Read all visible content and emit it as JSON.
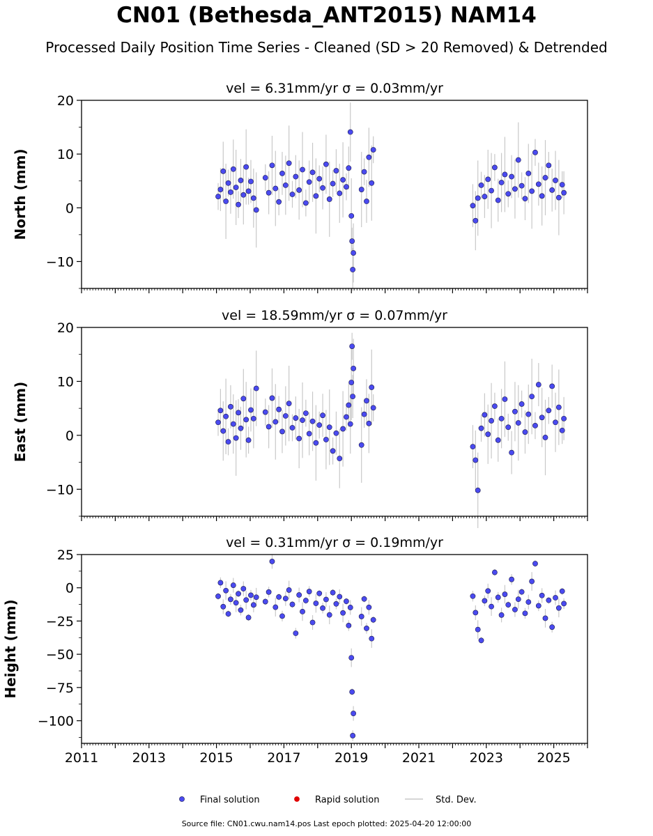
{
  "figure": {
    "title": "CN01 (Bethesda_ANT2015) NAM14",
    "subtitle": "Processed Daily Position Time Series - Cleaned (SD > 20 Removed) & Detrended",
    "footer": "Source file: CN01.cwu.nam14.pos  Last epoch plotted: 2025-04-20 12:00:00"
  },
  "colors": {
    "final_marker": "#4a4af0",
    "final_edge": "#1a1a4a",
    "rapid_marker": "#e00000",
    "std_dev": "#c8c8c8"
  },
  "legend": {
    "placement": "bottom-center",
    "items": [
      {
        "label": "Final solution",
        "kind": "marker",
        "color_key": "final_marker"
      },
      {
        "label": "Rapid solution",
        "kind": "marker",
        "color_key": "rapid_marker"
      },
      {
        "label": "Std. Dev.",
        "kind": "line",
        "color_key": "std_dev"
      }
    ]
  },
  "chart_data": [
    {
      "type": "scatter",
      "title": "vel = 6.31mm/yr   σ = 0.03mm/yr",
      "ylabel": "North (mm)",
      "xlim": [
        2011,
        2026
      ],
      "ylim": [
        -15,
        20
      ],
      "yticks": [
        -10,
        0,
        10,
        20
      ],
      "xticks": [
        2011,
        2013,
        2015,
        2017,
        2019,
        2021,
        2023,
        2025
      ],
      "show_xtick_labels": false,
      "series": [
        {
          "points": [
            [
              2015.05,
              2.1
            ],
            [
              2015.12,
              3.4
            ],
            [
              2015.2,
              6.8
            ],
            [
              2015.28,
              1.2
            ],
            [
              2015.35,
              4.6
            ],
            [
              2015.42,
              2.9
            ],
            [
              2015.5,
              7.2
            ],
            [
              2015.58,
              3.8
            ],
            [
              2015.65,
              0.6
            ],
            [
              2015.72,
              5.1
            ],
            [
              2015.8,
              2.4
            ],
            [
              2015.88,
              7.6
            ],
            [
              2015.95,
              3.1
            ],
            [
              2016.02,
              4.9
            ],
            [
              2016.1,
              1.8
            ],
            [
              2016.18,
              -0.4
            ],
            [
              2016.45,
              5.6
            ],
            [
              2016.55,
              2.8
            ],
            [
              2016.65,
              7.9
            ],
            [
              2016.75,
              3.6
            ],
            [
              2016.85,
              1.1
            ],
            [
              2016.95,
              6.4
            ],
            [
              2017.05,
              4.2
            ],
            [
              2017.15,
              8.3
            ],
            [
              2017.25,
              2.5
            ],
            [
              2017.35,
              5.8
            ],
            [
              2017.45,
              3.3
            ],
            [
              2017.55,
              7.1
            ],
            [
              2017.65,
              0.9
            ],
            [
              2017.75,
              4.8
            ],
            [
              2017.85,
              6.6
            ],
            [
              2017.95,
              2.2
            ],
            [
              2018.05,
              5.4
            ],
            [
              2018.15,
              3.7
            ],
            [
              2018.25,
              8.1
            ],
            [
              2018.35,
              1.6
            ],
            [
              2018.45,
              4.5
            ],
            [
              2018.55,
              6.9
            ],
            [
              2018.65,
              2.7
            ],
            [
              2018.75,
              5.2
            ],
            [
              2018.85,
              3.9
            ],
            [
              2018.92,
              7.4
            ],
            [
              2018.97,
              14.1
            ],
            [
              2019.0,
              -1.5
            ],
            [
              2019.02,
              -6.2
            ],
            [
              2019.04,
              -11.5
            ],
            [
              2019.06,
              -8.4
            ],
            [
              2019.3,
              3.4
            ],
            [
              2019.38,
              6.7
            ],
            [
              2019.45,
              1.2
            ],
            [
              2019.52,
              9.4
            ],
            [
              2019.6,
              4.6
            ],
            [
              2019.65,
              10.8
            ],
            [
              2022.6,
              0.4
            ],
            [
              2022.68,
              -2.4
            ],
            [
              2022.75,
              1.8
            ],
            [
              2022.85,
              4.2
            ],
            [
              2022.95,
              2.1
            ],
            [
              2023.05,
              5.3
            ],
            [
              2023.15,
              3.2
            ],
            [
              2023.25,
              7.5
            ],
            [
              2023.35,
              1.4
            ],
            [
              2023.45,
              4.7
            ],
            [
              2023.55,
              6.2
            ],
            [
              2023.65,
              2.6
            ],
            [
              2023.75,
              5.8
            ],
            [
              2023.85,
              3.5
            ],
            [
              2023.95,
              8.9
            ],
            [
              2024.05,
              4.1
            ],
            [
              2024.15,
              1.7
            ],
            [
              2024.25,
              6.4
            ],
            [
              2024.35,
              3.1
            ],
            [
              2024.45,
              10.3
            ],
            [
              2024.55,
              4.4
            ],
            [
              2024.65,
              2.2
            ],
            [
              2024.75,
              5.6
            ],
            [
              2024.85,
              7.9
            ],
            [
              2024.95,
              3.3
            ],
            [
              2025.05,
              5.1
            ],
            [
              2025.15,
              1.9
            ],
            [
              2025.25,
              4.3
            ],
            [
              2025.3,
              2.8
            ]
          ]
        }
      ]
    },
    {
      "type": "scatter",
      "title": "vel = 18.59mm/yr   σ = 0.07mm/yr",
      "ylabel": "East (mm)",
      "xlim": [
        2011,
        2026
      ],
      "ylim": [
        -15,
        20
      ],
      "yticks": [
        -10,
        0,
        10,
        20
      ],
      "xticks": [
        2011,
        2013,
        2015,
        2017,
        2019,
        2021,
        2023,
        2025
      ],
      "show_xtick_labels": false,
      "series": [
        {
          "points": [
            [
              2015.05,
              2.4
            ],
            [
              2015.12,
              4.6
            ],
            [
              2015.2,
              0.8
            ],
            [
              2015.28,
              3.5
            ],
            [
              2015.35,
              -1.2
            ],
            [
              2015.42,
              5.3
            ],
            [
              2015.5,
              2.1
            ],
            [
              2015.58,
              -0.5
            ],
            [
              2015.65,
              4.2
            ],
            [
              2015.72,
              1.3
            ],
            [
              2015.8,
              6.8
            ],
            [
              2015.88,
              2.9
            ],
            [
              2015.95,
              -0.9
            ],
            [
              2016.02,
              4.7
            ],
            [
              2016.1,
              3.1
            ],
            [
              2016.18,
              8.7
            ],
            [
              2016.45,
              4.3
            ],
            [
              2016.55,
              1.6
            ],
            [
              2016.65,
              6.9
            ],
            [
              2016.75,
              2.5
            ],
            [
              2016.85,
              4.8
            ],
            [
              2016.95,
              0.7
            ],
            [
              2017.05,
              3.6
            ],
            [
              2017.15,
              5.9
            ],
            [
              2017.25,
              1.4
            ],
            [
              2017.35,
              3.2
            ],
            [
              2017.45,
              -0.6
            ],
            [
              2017.55,
              2.8
            ],
            [
              2017.65,
              4.1
            ],
            [
              2017.75,
              0.3
            ],
            [
              2017.85,
              2.6
            ],
            [
              2017.95,
              -1.4
            ],
            [
              2018.05,
              1.9
            ],
            [
              2018.15,
              3.7
            ],
            [
              2018.25,
              -0.8
            ],
            [
              2018.35,
              1.5
            ],
            [
              2018.45,
              -2.9
            ],
            [
              2018.55,
              0.4
            ],
            [
              2018.65,
              -4.3
            ],
            [
              2018.75,
              1.2
            ],
            [
              2018.85,
              3.4
            ],
            [
              2018.92,
              5.6
            ],
            [
              2018.97,
              2.1
            ],
            [
              2019.0,
              9.8
            ],
            [
              2019.02,
              16.5
            ],
            [
              2019.04,
              7.2
            ],
            [
              2019.06,
              12.4
            ],
            [
              2019.3,
              -1.8
            ],
            [
              2019.38,
              3.9
            ],
            [
              2019.45,
              6.4
            ],
            [
              2019.52,
              2.2
            ],
            [
              2019.6,
              8.9
            ],
            [
              2019.65,
              5.1
            ],
            [
              2022.6,
              -2.1
            ],
            [
              2022.68,
              -4.6
            ],
            [
              2022.75,
              -10.2
            ],
            [
              2022.85,
              1.3
            ],
            [
              2022.95,
              3.8
            ],
            [
              2023.05,
              0.2
            ],
            [
              2023.15,
              2.7
            ],
            [
              2023.25,
              5.4
            ],
            [
              2023.35,
              -0.9
            ],
            [
              2023.45,
              3.1
            ],
            [
              2023.55,
              6.7
            ],
            [
              2023.65,
              1.5
            ],
            [
              2023.75,
              -3.2
            ],
            [
              2023.85,
              4.4
            ],
            [
              2023.95,
              2.3
            ],
            [
              2024.05,
              5.8
            ],
            [
              2024.15,
              0.6
            ],
            [
              2024.25,
              3.9
            ],
            [
              2024.35,
              7.2
            ],
            [
              2024.45,
              1.8
            ],
            [
              2024.55,
              9.4
            ],
            [
              2024.65,
              3.3
            ],
            [
              2024.75,
              -0.4
            ],
            [
              2024.85,
              4.6
            ],
            [
              2024.95,
              9.1
            ],
            [
              2025.05,
              2.4
            ],
            [
              2025.15,
              5.2
            ],
            [
              2025.25,
              0.9
            ],
            [
              2025.3,
              3.1
            ]
          ]
        }
      ]
    },
    {
      "type": "scatter",
      "title": "vel = 0.31mm/yr   σ = 0.19mm/yr",
      "ylabel": "Height (mm)",
      "xlim": [
        2011,
        2026
      ],
      "ylim": [
        -117,
        25
      ],
      "yticks": [
        -100,
        -75,
        -50,
        -25,
        0,
        25
      ],
      "xticks": [
        2011,
        2013,
        2015,
        2017,
        2019,
        2021,
        2023,
        2025
      ],
      "show_xtick_labels": true,
      "series": [
        {
          "points": [
            [
              2015.05,
              -6.4
            ],
            [
              2015.12,
              3.8
            ],
            [
              2015.2,
              -14.2
            ],
            [
              2015.28,
              -2.1
            ],
            [
              2015.35,
              -19.6
            ],
            [
              2015.42,
              -8.7
            ],
            [
              2015.5,
              1.9
            ],
            [
              2015.58,
              -11.3
            ],
            [
              2015.65,
              -4.5
            ],
            [
              2015.72,
              -16.8
            ],
            [
              2015.8,
              -0.7
            ],
            [
              2015.88,
              -9.2
            ],
            [
              2015.95,
              -22.4
            ],
            [
              2016.02,
              -5.6
            ],
            [
              2016.1,
              -12.9
            ],
            [
              2016.18,
              -7.1
            ],
            [
              2016.45,
              -10.4
            ],
            [
              2016.55,
              -3.2
            ],
            [
              2016.65,
              19.8
            ],
            [
              2016.75,
              -14.6
            ],
            [
              2016.85,
              -6.9
            ],
            [
              2016.95,
              -21.3
            ],
            [
              2017.05,
              -8.1
            ],
            [
              2017.15,
              -1.7
            ],
            [
              2017.25,
              -12.5
            ],
            [
              2017.35,
              -34.2
            ],
            [
              2017.45,
              -5.4
            ],
            [
              2017.55,
              -17.9
            ],
            [
              2017.65,
              -9.6
            ],
            [
              2017.75,
              -2.8
            ],
            [
              2017.85,
              -26.1
            ],
            [
              2017.95,
              -11.7
            ],
            [
              2018.05,
              -4.2
            ],
            [
              2018.15,
              -15.3
            ],
            [
              2018.25,
              -8.8
            ],
            [
              2018.35,
              -20.4
            ],
            [
              2018.45,
              -3.6
            ],
            [
              2018.55,
              -12.1
            ],
            [
              2018.65,
              -6.7
            ],
            [
              2018.75,
              -18.9
            ],
            [
              2018.85,
              -10.2
            ],
            [
              2018.92,
              -28.4
            ],
            [
              2018.97,
              -14.8
            ],
            [
              2019.0,
              -52.6
            ],
            [
              2019.02,
              -78.3
            ],
            [
              2019.04,
              -111.2
            ],
            [
              2019.06,
              -94.5
            ],
            [
              2019.3,
              -21.6
            ],
            [
              2019.38,
              -8.4
            ],
            [
              2019.45,
              -30.5
            ],
            [
              2019.52,
              -14.7
            ],
            [
              2019.6,
              -38.2
            ],
            [
              2019.65,
              -24.1
            ],
            [
              2022.6,
              -6.3
            ],
            [
              2022.68,
              -18.7
            ],
            [
              2022.75,
              -31.4
            ],
            [
              2022.85,
              -39.6
            ],
            [
              2022.95,
              -9.8
            ],
            [
              2023.05,
              -2.4
            ],
            [
              2023.15,
              -14.1
            ],
            [
              2023.25,
              11.6
            ],
            [
              2023.35,
              -7.2
            ],
            [
              2023.45,
              -20.5
            ],
            [
              2023.55,
              -4.9
            ],
            [
              2023.65,
              -12.8
            ],
            [
              2023.75,
              6.3
            ],
            [
              2023.85,
              -16.4
            ],
            [
              2023.95,
              -8.6
            ],
            [
              2024.05,
              -3.1
            ],
            [
              2024.15,
              -19.2
            ],
            [
              2024.25,
              -10.7
            ],
            [
              2024.35,
              4.8
            ],
            [
              2024.45,
              18.2
            ],
            [
              2024.55,
              -13.5
            ],
            [
              2024.65,
              -5.8
            ],
            [
              2024.75,
              -22.9
            ],
            [
              2024.85,
              -9.4
            ],
            [
              2024.95,
              -29.6
            ],
            [
              2025.05,
              -7.5
            ],
            [
              2025.15,
              -15.2
            ],
            [
              2025.25,
              -2.6
            ],
            [
              2025.3,
              -11.9
            ]
          ]
        }
      ]
    }
  ]
}
